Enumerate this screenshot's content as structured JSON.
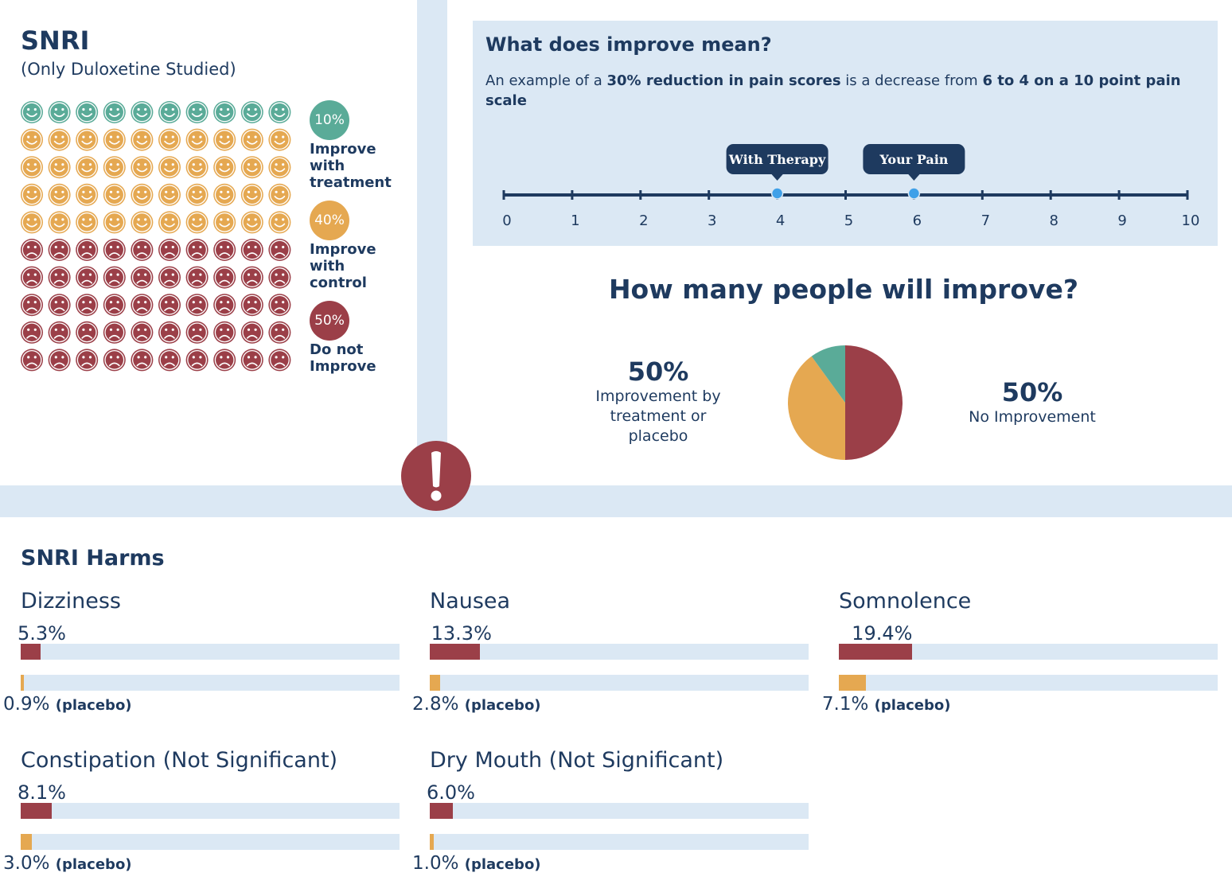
{
  "header": {
    "title": "SNRI",
    "subtitle": "(Only Duloxetine Studied)"
  },
  "colors": {
    "green": "#5aab98",
    "orange": "#e5a851",
    "red": "#9b3f48",
    "navy": "#1e3a5f",
    "panel": "#dbe8f4",
    "dot": "#3fa0e8"
  },
  "icons": {
    "happy": "smiley-face-icon",
    "sad": "sad-face-icon",
    "alert": "exclamation-icon"
  },
  "face_grid": {
    "green_count": 10,
    "orange_count": 40,
    "red_count": 50,
    "columns": 10
  },
  "legend": [
    {
      "percent": "10%",
      "label_lines": [
        "Improve",
        "with",
        "treatment"
      ],
      "color": "#5aab98"
    },
    {
      "percent": "40%",
      "label_lines": [
        "Improve",
        "with",
        "control"
      ],
      "color": "#e5a851"
    },
    {
      "percent": "50%",
      "label_lines": [
        "Do not",
        "Improve"
      ],
      "color": "#9b3f48"
    }
  ],
  "improve_info": {
    "title": "What does improve mean?",
    "text_before": "An example of a ",
    "text_bold1": "30% reduction in pain scores",
    "text_middle": " is a decrease from ",
    "text_bold2": "6 to 4 on a 10 point pain scale",
    "scale": {
      "ticks": [
        "0",
        "1",
        "2",
        "3",
        "4",
        "5",
        "6",
        "7",
        "8",
        "9",
        "10"
      ],
      "markers": [
        {
          "label": "With Therapy",
          "value": 4
        },
        {
          "label": "Your Pain",
          "value": 6
        }
      ]
    }
  },
  "improve_question": {
    "title": "How many people will improve?",
    "left_pct": "50%",
    "left_desc_lines": [
      "Improvement by",
      "treatment or",
      "placebo"
    ],
    "right_pct": "50%",
    "right_desc": "No Improvement"
  },
  "chart_data": {
    "type": "pie",
    "slices": [
      {
        "value": 50,
        "color": "#9b3f48"
      },
      {
        "value": 40,
        "color": "#e5a851"
      },
      {
        "value": 10,
        "color": "#5aab98"
      }
    ]
  },
  "harms": {
    "title": "SNRI Harms",
    "placebo_suffix": "(placebo)",
    "items": [
      {
        "name": "Dizziness",
        "treatment": "5.3%",
        "treatment_value": 5.3,
        "placebo": "0.9%",
        "placebo_value": 0.9
      },
      {
        "name": "Nausea",
        "treatment": "13.3%",
        "treatment_value": 13.3,
        "placebo": "2.8%",
        "placebo_value": 2.8
      },
      {
        "name": "Somnolence",
        "treatment": "19.4%",
        "treatment_value": 19.4,
        "placebo": "7.1%",
        "placebo_value": 7.1
      },
      {
        "name": "Constipation (Not Significant)",
        "treatment": "8.1%",
        "treatment_value": 8.1,
        "placebo": "3.0%",
        "placebo_value": 3.0
      },
      {
        "name": "Dry Mouth (Not Significant)",
        "treatment": "6.0%",
        "treatment_value": 6.0,
        "placebo": "1.0%",
        "placebo_value": 1.0
      }
    ]
  }
}
